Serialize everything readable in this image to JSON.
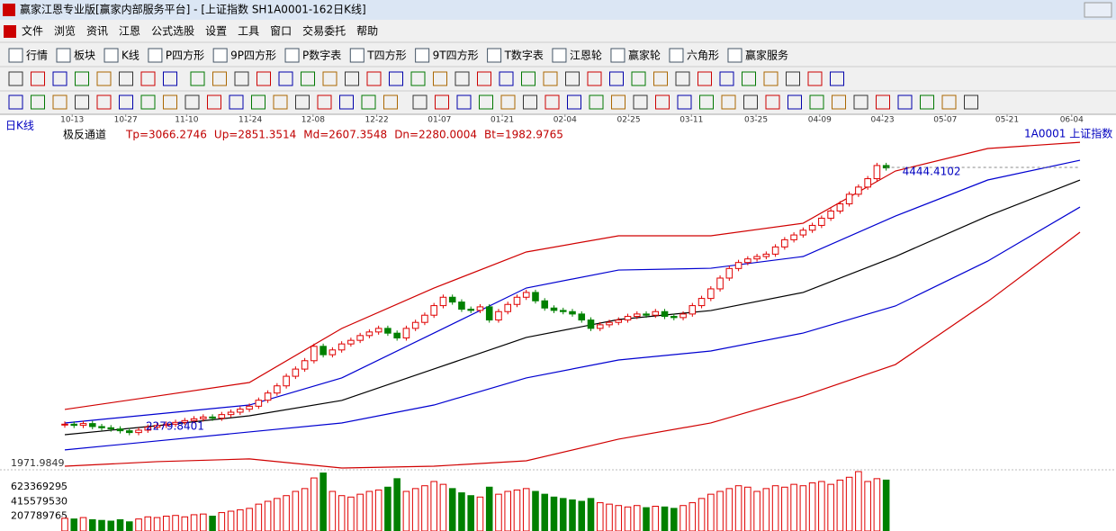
{
  "window": {
    "title": "赢家江恩专业版[赢家内部服务平台] - [上证指数  SH1A0001-162日K线]",
    "menu": [
      "文件",
      "浏览",
      "资讯",
      "江恩",
      "公式选股",
      "设置",
      "工具",
      "窗口",
      "交易委托",
      "帮助"
    ],
    "toolbar": [
      "行情",
      "板块",
      "K线",
      "P四方形",
      "9P四方形",
      "P数字表",
      "T四方形",
      "9T四方形",
      "T数字表",
      "江恩轮",
      "赢家轮",
      "六角形",
      "赢家服务"
    ]
  },
  "chart_data": {
    "type": "candlestick",
    "period_label": "日K线",
    "indicator_name": "极反通道",
    "indicator_values": [
      "Tp=3066.2746",
      "Up=2851.3514",
      "Md=2607.3548",
      "Dn=2280.0004",
      "Bt=1982.9765"
    ],
    "symbol_label": "1A0001  上证指数",
    "xlim": [
      0,
      110
    ],
    "ylim": [
      1934,
      4790
    ],
    "date_ticks": [
      {
        "value": 0.8,
        "label": "10-13"
      },
      {
        "value": 6.6,
        "label": "10-27"
      },
      {
        "value": 13.2,
        "label": "11-10"
      },
      {
        "value": 20.1,
        "label": "11-24"
      },
      {
        "value": 26.9,
        "label": "12-08"
      },
      {
        "value": 33.8,
        "label": "12-22"
      },
      {
        "value": 40.6,
        "label": "01-07"
      },
      {
        "value": 47.4,
        "label": "01-21"
      },
      {
        "value": 54.2,
        "label": "02-04"
      },
      {
        "value": 61.1,
        "label": "02-25"
      },
      {
        "value": 67.9,
        "label": "03-11"
      },
      {
        "value": 74.9,
        "label": "03-25"
      },
      {
        "value": 81.8,
        "label": "04-09"
      },
      {
        "value": 88.6,
        "label": "04-23"
      },
      {
        "value": 95.4,
        "label": "05-07"
      },
      {
        "value": 102.1,
        "label": "05-21"
      },
      {
        "value": 109.1,
        "label": "06-04"
      }
    ],
    "closes": [
      2300,
      2290,
      2305,
      2280,
      2270,
      2260,
      2245,
      2230,
      2250,
      2275,
      2290,
      2300,
      2315,
      2330,
      2345,
      2360,
      2350,
      2380,
      2400,
      2425,
      2450,
      2500,
      2560,
      2620,
      2700,
      2760,
      2830,
      2950,
      2880,
      2920,
      2970,
      3000,
      3040,
      3070,
      3100,
      3060,
      3020,
      3100,
      3150,
      3210,
      3290,
      3360,
      3320,
      3260,
      3250,
      3280,
      3170,
      3240,
      3300,
      3360,
      3400,
      3330,
      3270,
      3250,
      3240,
      3220,
      3170,
      3100,
      3130,
      3150,
      3170,
      3200,
      3220,
      3210,
      3240,
      3200,
      3190,
      3220,
      3290,
      3350,
      3430,
      3520,
      3600,
      3650,
      3680,
      3700,
      3720,
      3780,
      3840,
      3880,
      3920,
      3960,
      4020,
      4080,
      4140,
      4220,
      4280,
      4350,
      4460,
      4440
    ],
    "band_x": [
      0,
      10,
      20,
      30,
      40,
      50,
      60,
      70,
      80,
      90,
      100,
      110
    ],
    "bands": [
      {
        "color": "#d00000",
        "values": [
          2423,
          2535,
          2648,
          3099,
          3437,
          3738,
          3873,
          3873,
          3978,
          4414,
          4602,
          4654
        ]
      },
      {
        "color": "#0000d0",
        "values": [
          2310,
          2385,
          2460,
          2686,
          3061,
          3437,
          3587,
          3602,
          3700,
          4038,
          4339,
          4504
        ]
      },
      {
        "color": "#000000",
        "values": [
          2212,
          2287,
          2370,
          2498,
          2761,
          3024,
          3174,
          3249,
          3400,
          3700,
          4038,
          4339
        ]
      },
      {
        "color": "#0000d0",
        "values": [
          2085,
          2160,
          2235,
          2310,
          2460,
          2686,
          2836,
          2911,
          3061,
          3287,
          3662,
          4113
        ]
      },
      {
        "color": "#d00000",
        "values": [
          1949,
          1987,
          2010,
          1934,
          1949,
          1994,
          2175,
          2310,
          2535,
          2798,
          3324,
          3903
        ]
      }
    ],
    "price_labels": [
      4444.4102,
      2279.8401,
      1971.9849
    ],
    "volume": {
      "ylim": [
        0,
        840000000
      ],
      "yticks": [
        623369295,
        415579530,
        207789765
      ],
      "values": [
        180000000,
        170000000,
        190000000,
        160000000,
        150000000,
        140000000,
        160000000,
        130000000,
        170000000,
        200000000,
        190000000,
        210000000,
        220000000,
        200000000,
        230000000,
        240000000,
        210000000,
        260000000,
        280000000,
        300000000,
        320000000,
        380000000,
        420000000,
        460000000,
        500000000,
        560000000,
        600000000,
        750000000,
        820000000,
        560000000,
        500000000,
        480000000,
        520000000,
        560000000,
        580000000,
        620000000,
        740000000,
        560000000,
        600000000,
        640000000,
        700000000,
        660000000,
        600000000,
        540000000,
        500000000,
        480000000,
        620000000,
        520000000,
        560000000,
        580000000,
        600000000,
        560000000,
        520000000,
        480000000,
        460000000,
        440000000,
        420000000,
        460000000,
        400000000,
        380000000,
        360000000,
        340000000,
        360000000,
        330000000,
        350000000,
        340000000,
        320000000,
        360000000,
        400000000,
        460000000,
        520000000,
        560000000,
        600000000,
        640000000,
        620000000,
        560000000,
        600000000,
        640000000,
        620000000,
        660000000,
        640000000,
        680000000,
        700000000,
        660000000,
        720000000,
        760000000,
        840000000,
        700000000,
        740000000,
        720000000
      ]
    }
  }
}
